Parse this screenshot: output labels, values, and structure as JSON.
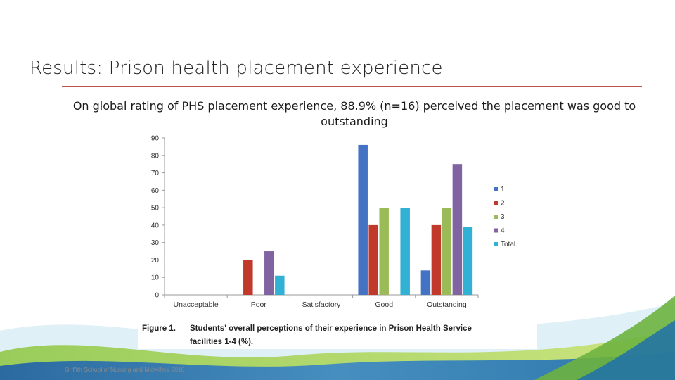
{
  "slide": {
    "title": "Results: Prison health placement experience",
    "subtitle": "On global rating of PHS placement experience, 88.9% (n=16) perceived the placement was good to outstanding",
    "footer": "Griffith School of Nursing and Midwifery 2016"
  },
  "figure": {
    "label": "Figure 1.",
    "caption_line1": "Students' overall perceptions of their experience in Prison Health Service",
    "caption_line2": "facilities 1-4 (%)."
  },
  "chart_data": {
    "type": "bar",
    "title": "",
    "xlabel": "",
    "ylabel": "",
    "categories": [
      "Unacceptable",
      "Poor",
      "Satisfactory",
      "Good",
      "Outstanding"
    ],
    "series": [
      {
        "name": "1",
        "color": "#4472c4",
        "values": [
          0,
          0,
          0,
          86,
          14
        ]
      },
      {
        "name": "2",
        "color": "#c0392b",
        "values": [
          0,
          20,
          0,
          40,
          40
        ]
      },
      {
        "name": "3",
        "color": "#9bbb59",
        "values": [
          0,
          0,
          0,
          50,
          50
        ]
      },
      {
        "name": "4",
        "color": "#8064a2",
        "values": [
          0,
          25,
          0,
          0,
          75
        ]
      },
      {
        "name": "Total",
        "color": "#31b1d4",
        "values": [
          0,
          11,
          0,
          50,
          39
        ]
      }
    ],
    "ylim": [
      0,
      90
    ],
    "yticks": [
      0,
      10,
      20,
      30,
      40,
      50,
      60,
      70,
      80,
      90
    ],
    "grid": false,
    "legend": "right"
  }
}
